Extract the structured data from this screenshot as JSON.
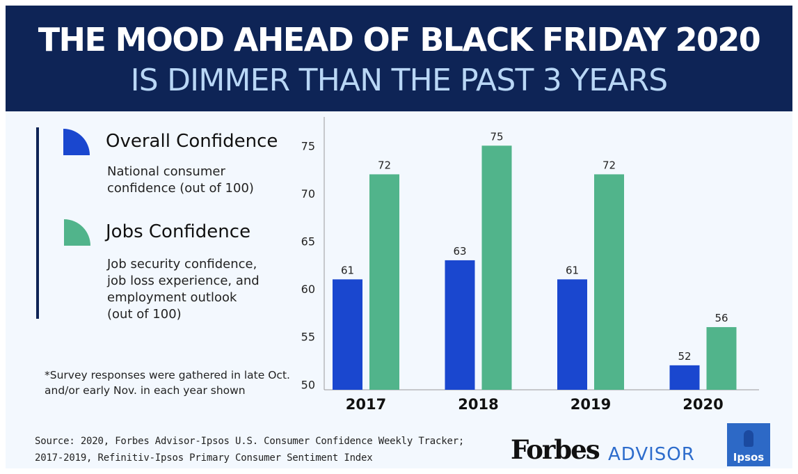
{
  "title_line1": "THE MOOD AHEAD OF BLACK FRIDAY 2020",
  "title_line2": "IS DIMMER THAN THE PAST 3 YEARS",
  "legend": [
    {
      "title": "Overall Confidence",
      "desc": "National consumer confidence (out of 100)",
      "color": "#1a47cf"
    },
    {
      "title": "Jobs Confidence",
      "desc": "Job security confidence, job loss experience, and employment outlook (out of 100)",
      "color": "#51b48b"
    }
  ],
  "note": "*Survey responses were gathered in late Oct. and/or early Nov. in each year shown",
  "source": "Source: 2020, Forbes Advisor-Ipsos U.S. Consumer Confidence Weekly Tracker; 2017-2019, Refinitiv-Ipsos Primary Consumer Sentiment Index",
  "logos": {
    "forbes": "Forbes",
    "advisor": "ADVISOR",
    "ipsos": "Ipsos"
  },
  "chart_data": {
    "type": "bar",
    "categories": [
      "2017",
      "2018",
      "2019",
      "2020"
    ],
    "series": [
      {
        "name": "Overall Confidence",
        "values": [
          61,
          63,
          61,
          52
        ],
        "color": "#1a47cf"
      },
      {
        "name": "Jobs Confidence",
        "values": [
          72,
          75,
          72,
          56
        ],
        "color": "#51b48b"
      }
    ],
    "ylim": [
      48.5,
      77.5
    ],
    "yticks": [
      50,
      55,
      60,
      65,
      70,
      75
    ],
    "grid": false,
    "legend_position": "left"
  }
}
